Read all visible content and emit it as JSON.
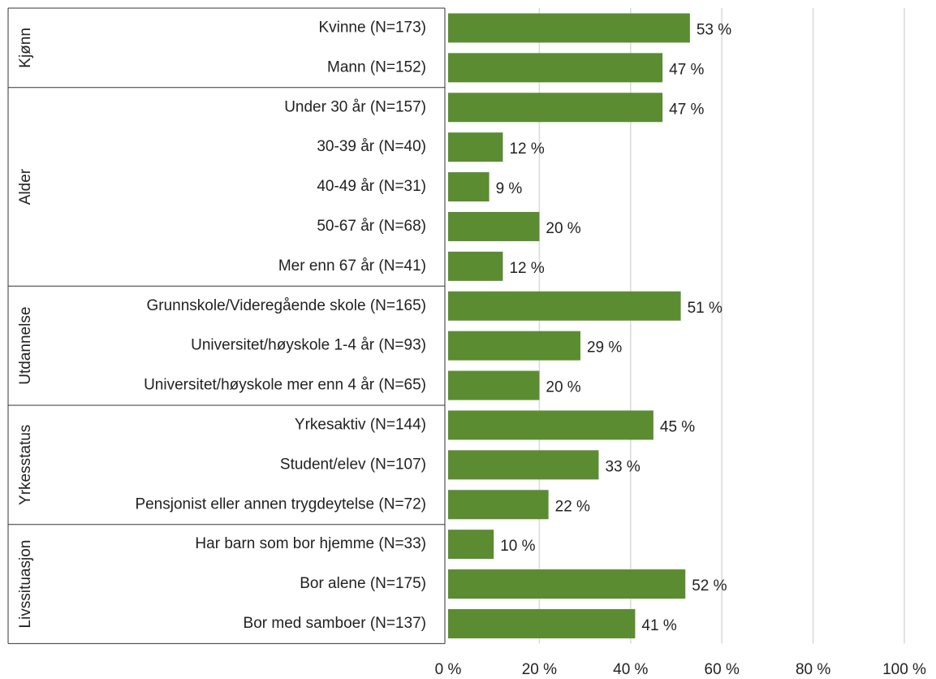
{
  "chart_data": {
    "type": "bar",
    "orientation": "horizontal",
    "color": "#5b8c32",
    "grid": true,
    "xlim": [
      0,
      100
    ],
    "xticks": [
      {
        "value": 0,
        "label": "0 %"
      },
      {
        "value": 20,
        "label": "20 %"
      },
      {
        "value": 40,
        "label": "40 %"
      },
      {
        "value": 60,
        "label": "60 %"
      },
      {
        "value": 80,
        "label": "80 %"
      },
      {
        "value": 100,
        "label": "100 %"
      }
    ],
    "groups": [
      {
        "name": "Kjønn",
        "categories": [
          "Kvinne (N=173)",
          "Mann (N=152)"
        ],
        "values": [
          53,
          47
        ],
        "value_labels": [
          "53 %",
          "47 %"
        ]
      },
      {
        "name": "Alder",
        "categories": [
          "Under 30 år (N=157)",
          "30-39 år (N=40)",
          "40-49 år (N=31)",
          "50-67 år (N=68)",
          "Mer enn 67 år (N=41)"
        ],
        "values": [
          47,
          12,
          9,
          20,
          12
        ],
        "value_labels": [
          "47 %",
          "12 %",
          "9 %",
          "20 %",
          "12 %"
        ]
      },
      {
        "name": "Utdannelse",
        "categories": [
          "Grunnskole/Videregående skole (N=165)",
          "Universitet/høyskole 1-4 år (N=93)",
          "Universitet/høyskole mer enn 4 år (N=65)"
        ],
        "values": [
          51,
          29,
          20
        ],
        "value_labels": [
          "51 %",
          "29 %",
          "20 %"
        ]
      },
      {
        "name": "Yrkesstatus",
        "categories": [
          "Yrkesaktiv (N=144)",
          "Student/elev (N=107)",
          "Pensjonist eller annen trygdeytelse (N=72)"
        ],
        "values": [
          45,
          33,
          22
        ],
        "value_labels": [
          "45 %",
          "33 %",
          "22 %"
        ]
      },
      {
        "name": "Livssituasjon",
        "categories": [
          "Har barn som bor hjemme (N=33)",
          "Bor alene (N=175)",
          "Bor med samboer (N=137)"
        ],
        "values": [
          10,
          52,
          41
        ],
        "value_labels": [
          "10 %",
          "52 %",
          "41 %"
        ]
      }
    ]
  }
}
